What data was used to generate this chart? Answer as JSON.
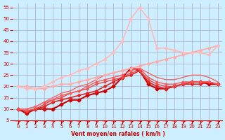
{
  "title": "",
  "xlabel": "Vent moyen/en rafales ( km/h )",
  "ylabel": "",
  "bg_color": "#cceeff",
  "grid_color": "#aaaacc",
  "x": [
    0,
    1,
    2,
    3,
    4,
    5,
    6,
    7,
    8,
    9,
    10,
    11,
    12,
    13,
    14,
    15,
    16,
    17,
    18,
    19,
    20,
    21,
    22,
    23
  ],
  "series": [
    {
      "y": [
        10,
        8,
        10,
        10,
        10,
        12,
        14,
        14,
        16,
        17,
        18,
        20,
        24,
        28,
        27,
        21,
        19,
        19,
        20,
        21,
        22,
        22,
        21,
        21
      ],
      "color": "#cc0000",
      "lw": 1.5,
      "marker": "D",
      "ms": 2.5
    },
    {
      "y": [
        10,
        9,
        10,
        11,
        13,
        14,
        15,
        16,
        17,
        18,
        20,
        22,
        24,
        25,
        27,
        22,
        20,
        19,
        20,
        21,
        21,
        21,
        22,
        21
      ],
      "color": "#dd2222",
      "lw": 1.2,
      "marker": "D",
      "ms": 2.0
    },
    {
      "y": [
        10,
        9,
        10,
        12,
        14,
        15,
        17,
        18,
        19,
        21,
        22,
        23,
        24,
        26,
        27,
        23,
        21,
        20,
        20,
        21,
        22,
        22,
        22,
        21
      ],
      "color": "#ee4444",
      "lw": 1.0,
      "marker": "D",
      "ms": 1.5
    },
    {
      "y": [
        10,
        10,
        11,
        13,
        14,
        16,
        17,
        18,
        20,
        22,
        23,
        24,
        25,
        27,
        28,
        24,
        22,
        21,
        21,
        22,
        22,
        22,
        22,
        21
      ],
      "color": "#ff5555",
      "lw": 1.0,
      "marker": "D",
      "ms": 1.5
    },
    {
      "y": [
        10,
        10,
        11,
        13,
        15,
        17,
        18,
        20,
        21,
        23,
        25,
        26,
        27,
        28,
        28,
        26,
        24,
        23,
        23,
        24,
        25,
        25,
        24,
        22
      ],
      "color": "#ee6666",
      "lw": 1.0,
      "marker": null,
      "ms": 0
    },
    {
      "y": [
        20,
        20,
        19,
        19,
        20,
        21,
        21,
        22,
        23,
        24,
        25,
        26,
        27,
        28,
        29,
        30,
        31,
        32,
        33,
        34,
        35,
        36,
        37,
        38
      ],
      "color": "#ffaaaa",
      "lw": 1.2,
      "marker": "D",
      "ms": 2.0
    },
    {
      "y": [
        20,
        19,
        19,
        20,
        22,
        24,
        25,
        27,
        28,
        30,
        32,
        35,
        40,
        50,
        55,
        50,
        37,
        37,
        36,
        35,
        35,
        35,
        34,
        38
      ],
      "color": "#ffbbbb",
      "lw": 1.2,
      "marker": "D",
      "ms": 2.0
    }
  ],
  "ylim": [
    5,
    57
  ],
  "yticks": [
    5,
    10,
    15,
    20,
    25,
    30,
    35,
    40,
    45,
    50,
    55
  ],
  "xlim": [
    -0.5,
    23.5
  ],
  "xticks": [
    0,
    1,
    2,
    3,
    4,
    5,
    6,
    7,
    8,
    9,
    10,
    11,
    12,
    13,
    14,
    15,
    16,
    17,
    18,
    19,
    20,
    21,
    22,
    23
  ]
}
